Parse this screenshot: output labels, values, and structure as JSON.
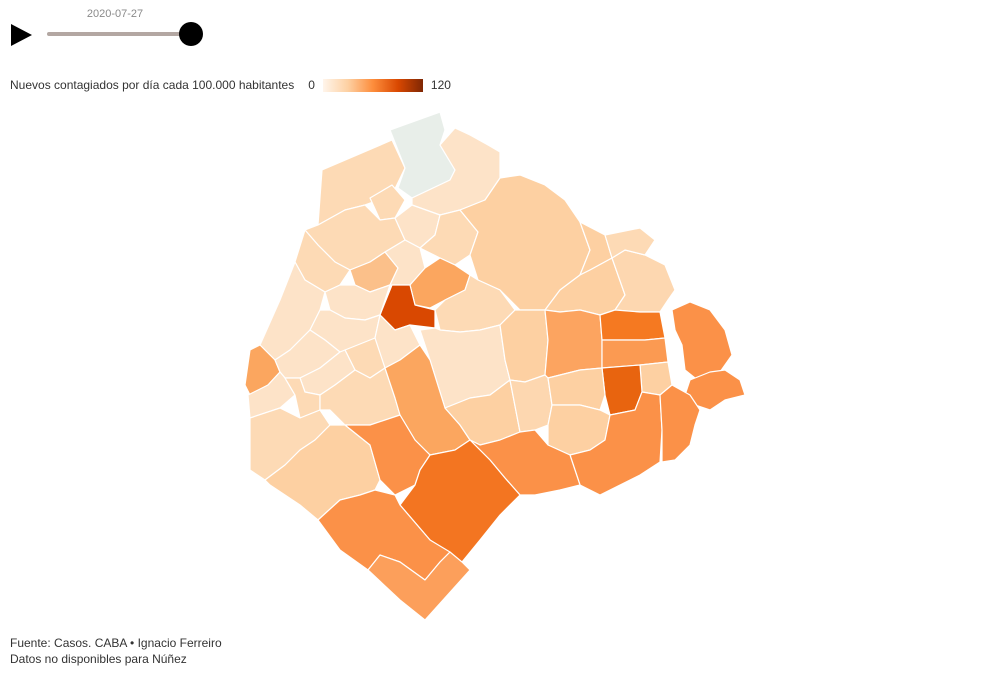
{
  "player": {
    "date": "2020-07-27",
    "progress": 1.0,
    "play_icon": "play-icon"
  },
  "legend": {
    "title": "Nuevos contagiados por día cada 100.000 habitantes",
    "min": "0",
    "max": "120"
  },
  "colors": {
    "scale": [
      "#fff5eb",
      "#fdd0a2",
      "#fd8d3c",
      "#d94801",
      "#7f2704"
    ],
    "no_data": "#e8eee9"
  },
  "footer": {
    "source": "Fuente: Casos. CABA • Ignacio Ferreiro",
    "note": "Datos no disponibles para Núñez"
  }
}
